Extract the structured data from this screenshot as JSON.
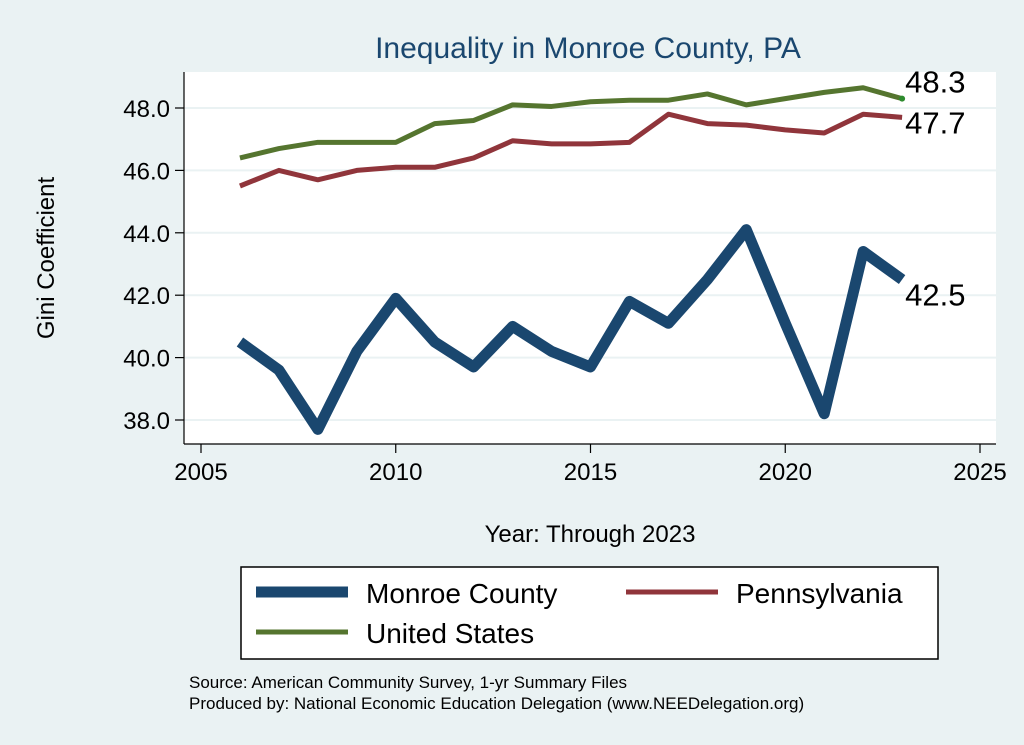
{
  "chart_data": {
    "type": "line",
    "title": "Inequality in Monroe County, PA",
    "xlabel": "Year: Through 2023",
    "ylabel": "Gini Coefficient",
    "xlim": [
      2005,
      2025
    ],
    "ylim": [
      37.5,
      49.2
    ],
    "x_ticks": [
      2005,
      2010,
      2015,
      2020,
      2025
    ],
    "y_ticks": [
      38,
      40,
      42,
      44,
      46,
      48
    ],
    "y_tick_labels": [
      "38.0",
      "40.0",
      "42.0",
      "44.0",
      "46.0",
      "48.0"
    ],
    "grid": "horizontal",
    "legend_position": "bottom",
    "x": [
      2006,
      2007,
      2008,
      2009,
      2010,
      2011,
      2012,
      2013,
      2014,
      2015,
      2016,
      2017,
      2018,
      2019,
      2020,
      2021,
      2022,
      2023
    ],
    "series": [
      {
        "name": "Monroe County",
        "color": "#1a476f",
        "values": [
          40.5,
          39.6,
          37.7,
          40.2,
          41.9,
          40.5,
          39.7,
          41.0,
          40.2,
          39.7,
          41.8,
          41.1,
          42.5,
          44.1,
          41.1,
          38.2,
          43.4,
          42.5
        ],
        "end_label": "42.5"
      },
      {
        "name": "Pennsylvania",
        "color": "#90353b",
        "values": [
          45.5,
          46.0,
          45.7,
          46.0,
          46.1,
          46.1,
          46.4,
          46.95,
          46.85,
          46.85,
          46.9,
          47.8,
          47.5,
          47.45,
          47.3,
          47.2,
          47.8,
          47.7
        ],
        "end_label": "47.7"
      },
      {
        "name": "United States",
        "color": "#55752f",
        "values": [
          46.4,
          46.7,
          46.9,
          46.9,
          46.9,
          47.5,
          47.6,
          48.1,
          48.05,
          48.2,
          48.25,
          48.25,
          48.45,
          48.1,
          48.3,
          48.5,
          48.65,
          48.3
        ],
        "end_label": "48.3"
      }
    ]
  },
  "notes": {
    "source": "Source: American Community Survey, 1-yr Summary Files",
    "produced_by": "Produced by: National Economic Education Delegation (www.NEEDelegation.org)"
  }
}
